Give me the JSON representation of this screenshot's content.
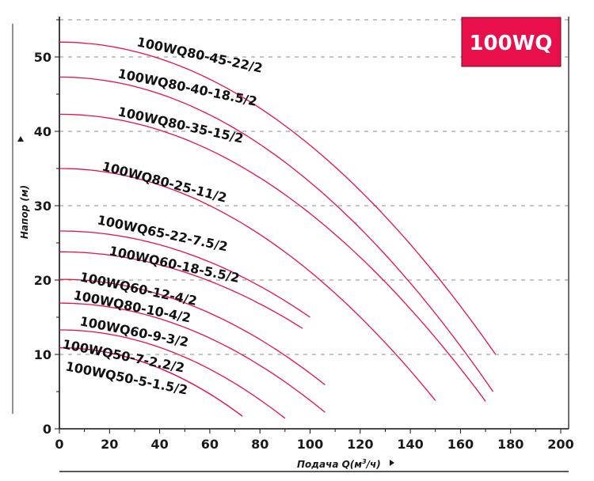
{
  "chart_data": {
    "type": "line",
    "badge": "100WQ",
    "xlabel_prefix": "Подача Q(м",
    "xlabel_sup": "3",
    "xlabel_suffix": "/ч)",
    "ylabel": "Напор (м)",
    "xlim": [
      0,
      200
    ],
    "ylim": [
      0,
      55
    ],
    "xticks": [
      "0",
      "20",
      "40",
      "60",
      "80",
      "100",
      "120",
      "140",
      "160",
      "180",
      "200"
    ],
    "yticks": [
      "0",
      "10",
      "20",
      "30",
      "40",
      "50"
    ],
    "grid": "dashed-horizontal",
    "line_color": "#e8104a",
    "badge_color": "#e8104a",
    "series": [
      {
        "name": "100WQ80-45-22/2",
        "x": [
          0,
          174
        ],
        "y": [
          52.0,
          10.0
        ]
      },
      {
        "name": "100WQ80-40-18.5/2",
        "x": [
          0,
          173
        ],
        "y": [
          47.3,
          5.0
        ]
      },
      {
        "name": "100WQ80-35-15/2",
        "x": [
          0,
          170
        ],
        "y": [
          42.3,
          3.7
        ]
      },
      {
        "name": "100WQ80-25-11/2",
        "x": [
          0,
          150
        ],
        "y": [
          35.0,
          3.8
        ]
      },
      {
        "name": "100WQ65-22-7.5/2",
        "x": [
          0,
          100
        ],
        "y": [
          26.6,
          15.0
        ]
      },
      {
        "name": "100WQ60-18-5.5/2",
        "x": [
          0,
          97
        ],
        "y": [
          23.8,
          13.5
        ]
      },
      {
        "name": "100WQ60-12-4/2",
        "x": [
          0,
          106
        ],
        "y": [
          20.1,
          5.9
        ]
      },
      {
        "name": "100WQ80-10-4/2",
        "x": [
          0,
          106
        ],
        "y": [
          16.9,
          2.2
        ]
      },
      {
        "name": "100WQ60-9-3/2",
        "x": [
          0,
          90
        ],
        "y": [
          13.3,
          1.4
        ]
      },
      {
        "name": "100WQ50-7-2.2/2",
        "x": [
          0,
          73
        ],
        "y": [
          10.9,
          1.7
        ]
      },
      {
        "name": "100WQ50-5-1.5/2",
        "x": [
          0,
          73
        ],
        "y": [
          10.9,
          1.7
        ]
      }
    ]
  }
}
